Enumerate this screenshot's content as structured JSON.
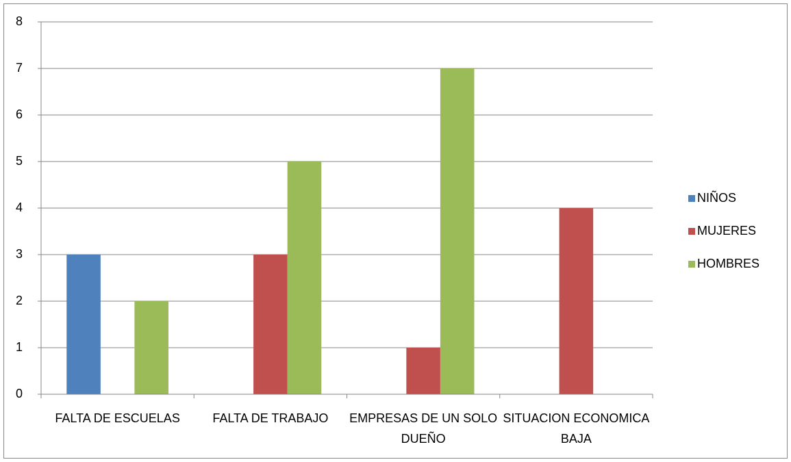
{
  "chart_data": {
    "type": "bar",
    "categories": [
      "FALTA DE ESCUELAS",
      "FALTA DE TRABAJO",
      "EMPRESAS DE UN SOLO DUEÑO",
      "SITUACION ECONOMICA BAJA"
    ],
    "series": [
      {
        "name": "NIÑOS",
        "color": "#4f81bd",
        "values": [
          3,
          0,
          0,
          0
        ]
      },
      {
        "name": "MUJERES",
        "color": "#c0504d",
        "values": [
          0,
          3,
          1,
          4
        ]
      },
      {
        "name": "HOMBRES",
        "color": "#9bbb59",
        "values": [
          2,
          5,
          7,
          0
        ]
      }
    ],
    "ylim": [
      0,
      8
    ],
    "yticks": [
      0,
      1,
      2,
      3,
      4,
      5,
      6,
      7,
      8
    ],
    "grid": true,
    "legend": "right"
  }
}
